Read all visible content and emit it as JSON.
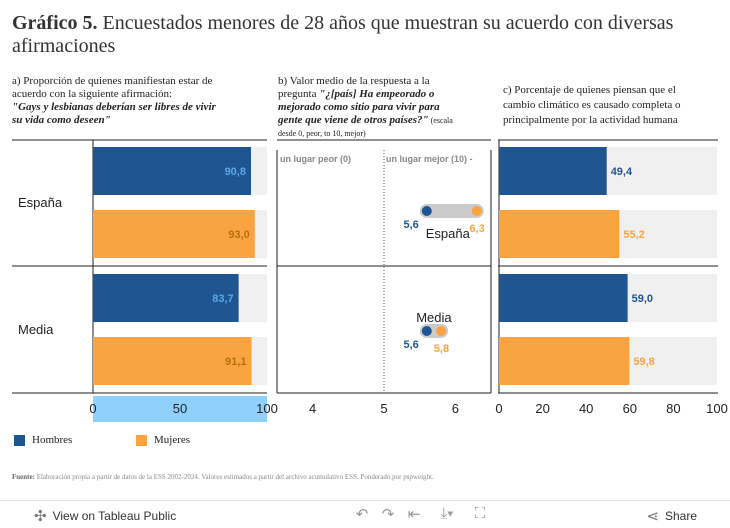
{
  "title": {
    "label": "Gráfico 5.",
    "text": "Encuestados menores de 28 años que muestran su acuerdo con diversas afirmaciones"
  },
  "panel_a": {
    "line1": "a) Proporción de quienes manifiestan estar de",
    "line2": "acuerdo con la siguiente afirmación:",
    "line3": "\"Gays y lesbianas deberían ser libres de vivir",
    "line4": "su vida como deseen\""
  },
  "panel_b": {
    "line1": "b) Valor medio de la respuesta a la",
    "line2a": "pregunta ",
    "line2b": "\"¿[país] Ha empeorado o",
    "line3": "mejorado como sitio para vivir para",
    "line4a": "gente que viene de otros países?\"",
    "line4b": " (escala",
    "line5": "desde 0, peor, to 10, mejor)"
  },
  "panel_c": {
    "line1": "c) Porcentaje de quienes piensan que el",
    "line2": "cambio climático es causado completa o",
    "line3": "principalmente por la actividad humana"
  },
  "colors": {
    "hombres": "#1f5591",
    "mujeres": "#f9a440",
    "track": "#f0f0f0",
    "axis_highlight": "#8fd1fb",
    "connector": "#cbcbcb"
  },
  "chart_data": [
    {
      "type": "bar",
      "id": "a",
      "title": "Gays y lesbianas deberían ser libres de vivir su vida como deseen",
      "categories": [
        "España",
        "Media"
      ],
      "series": [
        {
          "name": "Hombres",
          "values": [
            90.8,
            83.7
          ],
          "labels": [
            "90,8",
            "83,7"
          ]
        },
        {
          "name": "Mujeres",
          "values": [
            93.0,
            91.1
          ],
          "labels": [
            "93,0",
            "91,1"
          ]
        }
      ],
      "xlim": [
        0,
        100
      ],
      "ticks": [
        0,
        50,
        100
      ],
      "tick_labels": [
        "0",
        "50",
        "100"
      ]
    },
    {
      "type": "scatter",
      "id": "b",
      "title": "¿[país] Ha empeorado o mejorado como sitio para vivir para gente que viene de otros países?",
      "categories": [
        "España",
        "Media"
      ],
      "series": [
        {
          "name": "Hombres",
          "values": [
            5.6,
            5.6
          ],
          "labels": [
            "5,6",
            "5,6"
          ]
        },
        {
          "name": "Mujeres",
          "values": [
            6.3,
            5.8
          ],
          "labels": [
            "6,3",
            "5,8"
          ]
        }
      ],
      "xlim": [
        3.5,
        6.5
      ],
      "ticks": [
        4,
        5,
        6
      ],
      "tick_labels": [
        "4",
        "5",
        "6"
      ],
      "ref_line": 5,
      "left_annotation": "un lugar peor (0)",
      "right_annotation": "un lugar mejor (10) -"
    },
    {
      "type": "bar",
      "id": "c",
      "title": "Porcentaje de quienes piensan que el cambio climático es causado completa o principalmente por la actividad humana",
      "categories": [
        "España",
        "Media"
      ],
      "series": [
        {
          "name": "Hombres",
          "values": [
            49.4,
            59.0
          ],
          "labels": [
            "49,4",
            "59,0"
          ]
        },
        {
          "name": "Mujeres",
          "values": [
            55.2,
            59.8
          ],
          "labels": [
            "55,2",
            "59,8"
          ]
        }
      ],
      "xlim": [
        0,
        100
      ],
      "ticks": [
        0,
        20,
        40,
        60,
        80,
        100
      ],
      "tick_labels": [
        "0",
        "20",
        "40",
        "60",
        "80",
        "100"
      ]
    }
  ],
  "legend": {
    "hombres": "Hombres",
    "mujeres": "Mujeres"
  },
  "footnote": {
    "label": "Fuente:",
    "text": " Elaboración propia a partir de datos de la ESS 2002-2024. Valores estimados a partir del archivo acumulativo ESS. Ponderado por  pspweight."
  },
  "footer": {
    "view_label": "View on Tableau Public",
    "share_label": "Share"
  }
}
